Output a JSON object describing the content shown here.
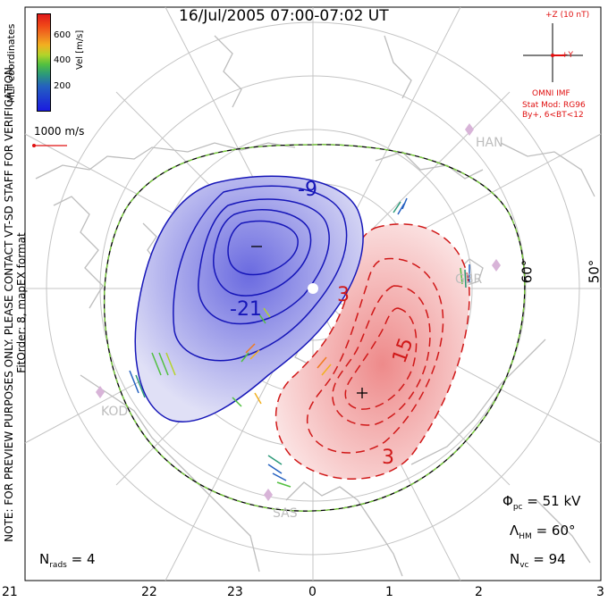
{
  "title": "16/Jul/2005 07:00-07:02 UT",
  "side_note": {
    "line1": "NOTE: FOR PREVIEW PURPOSES ONLY. PLEASE CONTACT VT-SD STAFF FOR VERIFICATION.",
    "line2": "FitOrder: 8, mapEX format"
  },
  "coord_system": "MLT coordinates",
  "colorbar": {
    "label": "Vel [m/s]",
    "ticks": [
      "600",
      "400",
      "200"
    ],
    "colors": [
      "#e01a1a",
      "#f07a20",
      "#f2b020",
      "#52c040",
      "#2c9a78",
      "#2460c0",
      "#1a1ae0"
    ]
  },
  "scale_vector": "1000 m/s",
  "imf": {
    "z_label": "+Z (10 nT)",
    "y_label": "+Y",
    "omni": "OMNI IMF",
    "stat_mod": "Stat Mod: RG96",
    "condition": "By+, 6<BT<12"
  },
  "stations": [
    "HAN",
    "KOD",
    "SAS",
    "GBR"
  ],
  "lat_labels": [
    "60°",
    "50°"
  ],
  "contours": {
    "negative": [
      "-9",
      "-21"
    ],
    "positive": [
      "3",
      "15",
      "3"
    ]
  },
  "stats": {
    "phi_symbol": "Φ",
    "phi_sub": "pc",
    "phi_value": "=  51 kV",
    "lambda_symbol": "Λ",
    "lambda_sub": "HM",
    "lambda_value": "=  60°",
    "nvc_symbol": "N",
    "nvc_sub": "vc",
    "nvc_value": "=  94",
    "nrads_symbol": "N",
    "nrads_sub": "rads",
    "nrads_value": "=  4"
  },
  "mlt_axis": [
    "21",
    "22",
    "23",
    "0",
    "1",
    "2",
    "3"
  ],
  "colors": {
    "negative_fill": "#8a8aea",
    "positive_fill": "#f2b0b0",
    "negative_line": "#1616b8",
    "positive_line": "#d01818",
    "coastline": "#bdbdbd",
    "boundary_dash": "#7ad23a"
  }
}
